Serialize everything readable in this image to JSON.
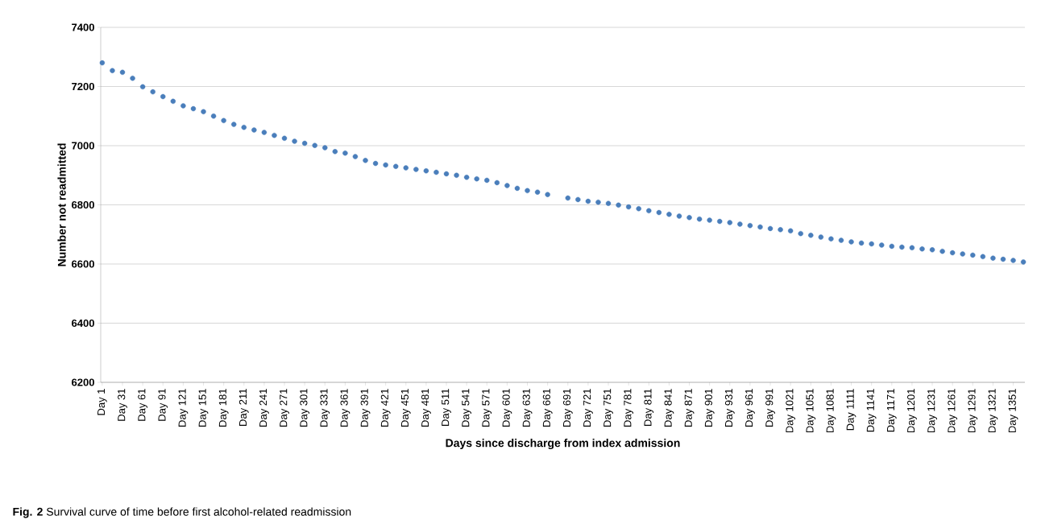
{
  "chart_data": {
    "type": "scatter",
    "xlabel": "Days since discharge from index admission",
    "ylabel": "Number not readmitted",
    "annotations": [
      "**Fig. 2** Survival curve of time before first alcohol-related readmission"
    ],
    "categories": [
      "Day 1",
      null,
      "Day 31",
      null,
      "Day 61",
      null,
      "Day 91",
      null,
      "Day 121",
      null,
      "Day 151",
      null,
      "Day 181",
      null,
      "Day 211",
      null,
      "Day 241",
      null,
      "Day 271",
      null,
      "Day 301",
      null,
      "Day 331",
      null,
      "Day 361",
      null,
      "Day 391",
      null,
      "Day 421",
      null,
      "Day 451",
      null,
      "Day 481",
      null,
      "Day 511",
      null,
      "Day 541",
      null,
      "Day 571",
      null,
      "Day 601",
      null,
      "Day 631",
      null,
      "Day 661",
      null,
      "Day 691",
      null,
      "Day 721",
      null,
      "Day 751",
      null,
      "Day 781",
      null,
      "Day 811",
      null,
      "Day 841",
      null,
      "Day 871",
      null,
      "Day 901",
      null,
      "Day 931",
      null,
      "Day 961",
      null,
      "Day 991",
      null,
      "Day 1021",
      null,
      "Day 1051",
      null,
      "Day 1081",
      null,
      "Day 1111",
      null,
      "Day 1141",
      null,
      "Day 1171",
      null,
      "Day 1201",
      null,
      "Day 1231",
      null,
      "Day 1261",
      null,
      "Day 1291",
      null,
      "Day 1321",
      null,
      "Day 1351",
      null
    ],
    "values": [
      7280,
      7254,
      7248,
      7228,
      7199,
      7182,
      7166,
      7150,
      7135,
      7125,
      7115,
      7100,
      7085,
      7072,
      7062,
      7053,
      7045,
      7035,
      7025,
      7015,
      7008,
      7001,
      6993,
      6980,
      6975,
      6963,
      6950,
      6940,
      6935,
      6930,
      6925,
      6920,
      6915,
      6910,
      6905,
      6900,
      6893,
      6888,
      6883,
      6875,
      6865,
      6856,
      6848,
      6843,
      6835,
      null,
      6823,
      6818,
      6812,
      6809,
      6805,
      6799,
      6793,
      6787,
      6780,
      6774,
      6768,
      6762,
      6757,
      6752,
      6748,
      6744,
      6740,
      6735,
      6730,
      6725,
      6720,
      6716,
      6712,
      6703,
      6697,
      6691,
      6685,
      6680,
      6675,
      6671,
      6668,
      6664,
      6660,
      6657,
      6655,
      6651,
      6648,
      6643,
      6638,
      6634,
      6630,
      6625,
      6620,
      6616,
      6612,
      6607
    ],
    "color": "#4a7ebb",
    "marker": "circle",
    "grid": "y",
    "ylim": [
      6200,
      7400
    ],
    "yticks": [
      6200,
      6400,
      6600,
      6800,
      7000,
      7200,
      7400
    ]
  }
}
